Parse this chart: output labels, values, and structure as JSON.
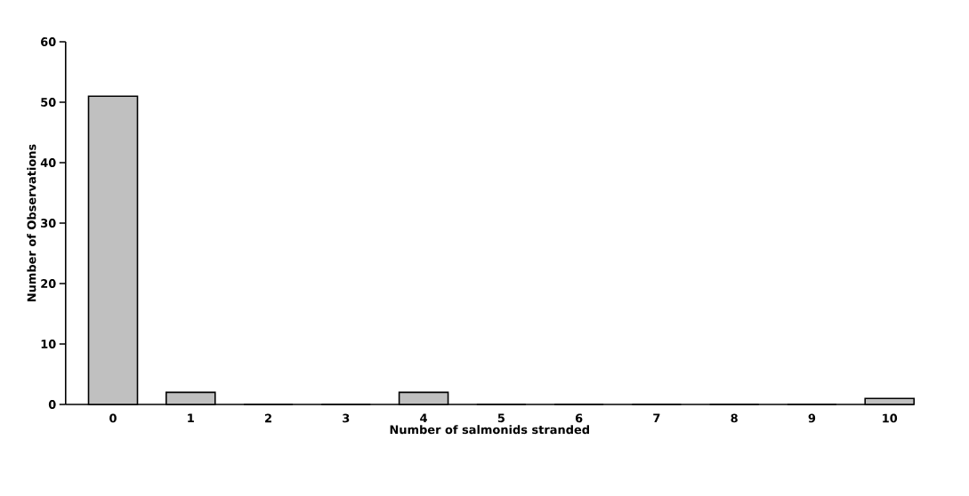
{
  "chart_data": {
    "type": "bar",
    "xlabel": "Number of salmonids stranded",
    "ylabel": "Number of Observations",
    "categories": [
      "0",
      "1",
      "2",
      "3",
      "4",
      "5",
      "6",
      "7",
      "8",
      "9",
      "10"
    ],
    "values": [
      51,
      2,
      0,
      0,
      2,
      0,
      0,
      0,
      0,
      0,
      1
    ],
    "color": "#c0c0c0",
    "ylim": [
      0,
      60
    ],
    "yticks": [
      0,
      10,
      20,
      30,
      40,
      50,
      60
    ],
    "grid": false
  }
}
